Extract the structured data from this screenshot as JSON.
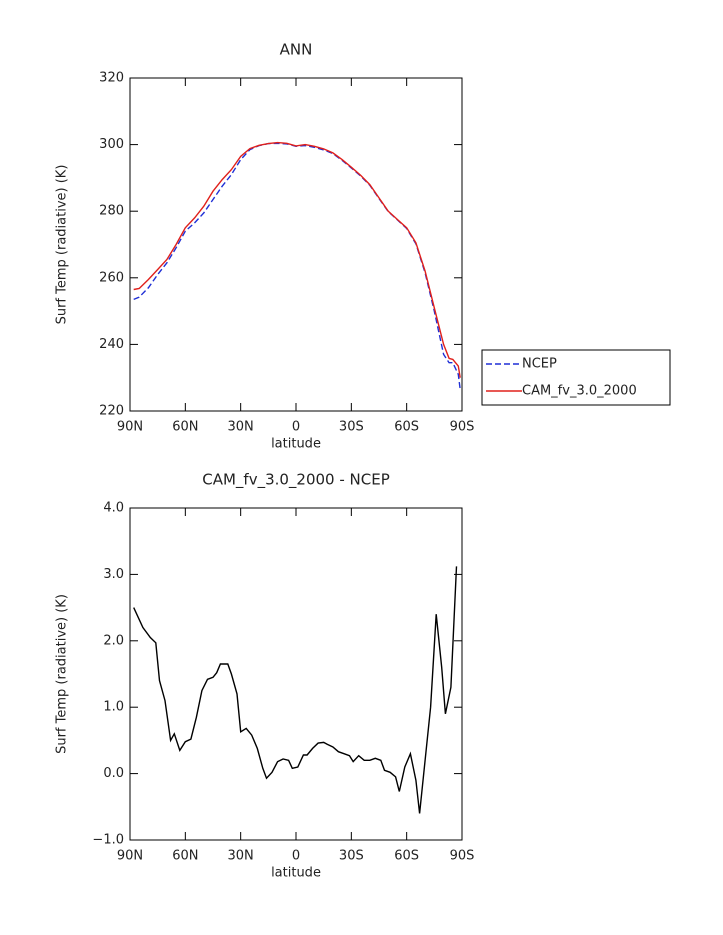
{
  "chart_data": [
    {
      "type": "line",
      "title": "ANN",
      "x_label": "latitude",
      "y_label": "Surf Temp (radiative) (K)",
      "x": [
        88,
        85,
        80,
        75,
        70,
        65,
        60,
        55,
        50,
        45,
        40,
        35,
        30,
        25,
        20,
        15,
        10,
        5,
        0,
        -5,
        -10,
        -15,
        -20,
        -25,
        -30,
        -35,
        -40,
        -45,
        -50,
        -55,
        -60,
        -65,
        -70,
        -75,
        -80,
        -83,
        -85,
        -88,
        -89
      ],
      "series": [
        {
          "name": "NCEP",
          "color": "#1f2fd6",
          "style": "dashed",
          "values": [
            253.5,
            254.2,
            257,
            261,
            264.5,
            269,
            274,
            276.5,
            279.5,
            283.5,
            287.5,
            291,
            295.5,
            298.5,
            299.7,
            300.3,
            300.4,
            300.2,
            299.5,
            299.7,
            299.2,
            298.4,
            297.3,
            295.3,
            293,
            290.6,
            287.8,
            283.8,
            279.9,
            277.4,
            274.8,
            270.2,
            261.5,
            250,
            237,
            234.5,
            234.5,
            231,
            226.5
          ]
        },
        {
          "name": "CAM_fv_3.0_2000",
          "color": "#e0201b",
          "style": "solid",
          "values": [
            256.5,
            256.8,
            259.5,
            262.5,
            265.5,
            270,
            275,
            278,
            281.5,
            286,
            289.5,
            292.5,
            296.5,
            298.8,
            299.8,
            300.3,
            300.6,
            300.4,
            299.6,
            300,
            299.5,
            298.7,
            297.5,
            295.5,
            293.2,
            290.8,
            288,
            284,
            280,
            277.5,
            275,
            270.5,
            262,
            251,
            240,
            235.8,
            235.5,
            233.5,
            230
          ]
        }
      ],
      "xlim": [
        90,
        -90
      ],
      "xticks": [
        {
          "value": 90,
          "label": "90N"
        },
        {
          "value": 60,
          "label": "60N"
        },
        {
          "value": 30,
          "label": "30N"
        },
        0,
        {
          "value": -30,
          "label": "30S"
        },
        {
          "value": -60,
          "label": "60S"
        },
        {
          "value": -90,
          "label": "90S"
        }
      ],
      "ylim": [
        220,
        320
      ],
      "yticks": [
        220,
        240,
        260,
        280,
        300,
        320
      ],
      "legend": "right"
    },
    {
      "type": "line",
      "title": "CAM_fv_3.0_2000 - NCEP",
      "x_label": "latitude",
      "y_label": "Surf Temp (radiative) (K)",
      "x": [
        88,
        83,
        79,
        76,
        74,
        71,
        68,
        66,
        63,
        60,
        57,
        54,
        51,
        48,
        45,
        43,
        41,
        37,
        35,
        32,
        30,
        27,
        24,
        21,
        18,
        16,
        13,
        10,
        7,
        4,
        2,
        -1,
        -4,
        -6,
        -9,
        -12,
        -15,
        -17,
        -20,
        -23,
        -26,
        -29,
        -31,
        -34,
        -37,
        -40,
        -43,
        -46,
        -48,
        -51,
        -54,
        -56,
        -59,
        -62,
        -65,
        -67,
        -70,
        -73,
        -76,
        -79,
        -81,
        -84,
        -87
      ],
      "series": [
        {
          "color": "#000000",
          "style": "solid",
          "values": [
            2.5,
            2.2,
            2.05,
            1.97,
            1.4,
            1.1,
            0.5,
            0.6,
            0.35,
            0.48,
            0.52,
            0.85,
            1.25,
            1.42,
            1.45,
            1.52,
            1.65,
            1.65,
            1.5,
            1.2,
            0.63,
            0.68,
            0.58,
            0.38,
            0.08,
            -0.07,
            0.02,
            0.18,
            0.22,
            0.2,
            0.08,
            0.1,
            0.28,
            0.28,
            0.38,
            0.46,
            0.47,
            0.44,
            0.4,
            0.33,
            0.3,
            0.27,
            0.18,
            0.27,
            0.2,
            0.2,
            0.23,
            0.2,
            0.05,
            0.02,
            -0.05,
            -0.27,
            0.1,
            0.3,
            -0.1,
            -0.6,
            0.2,
            1.0,
            2.4,
            1.6,
            0.9,
            1.3,
            3.12
          ]
        }
      ],
      "xlim": [
        90,
        -90
      ],
      "xticks": [
        {
          "value": 90,
          "label": "90N"
        },
        {
          "value": 60,
          "label": "60N"
        },
        {
          "value": 30,
          "label": "30N"
        },
        0,
        {
          "value": -30,
          "label": "30S"
        },
        {
          "value": -60,
          "label": "60S"
        },
        {
          "value": -90,
          "label": "90S"
        }
      ],
      "ylim": [
        -1,
        4
      ],
      "yticks": [
        {
          "value": -1,
          "label": "−1.0"
        },
        {
          "value": 0,
          "label": "0.0"
        },
        {
          "value": 1,
          "label": "1.0"
        },
        {
          "value": 2,
          "label": "2.0"
        },
        {
          "value": 3,
          "label": "3.0"
        },
        {
          "value": 4,
          "label": "4.0"
        }
      ]
    }
  ]
}
